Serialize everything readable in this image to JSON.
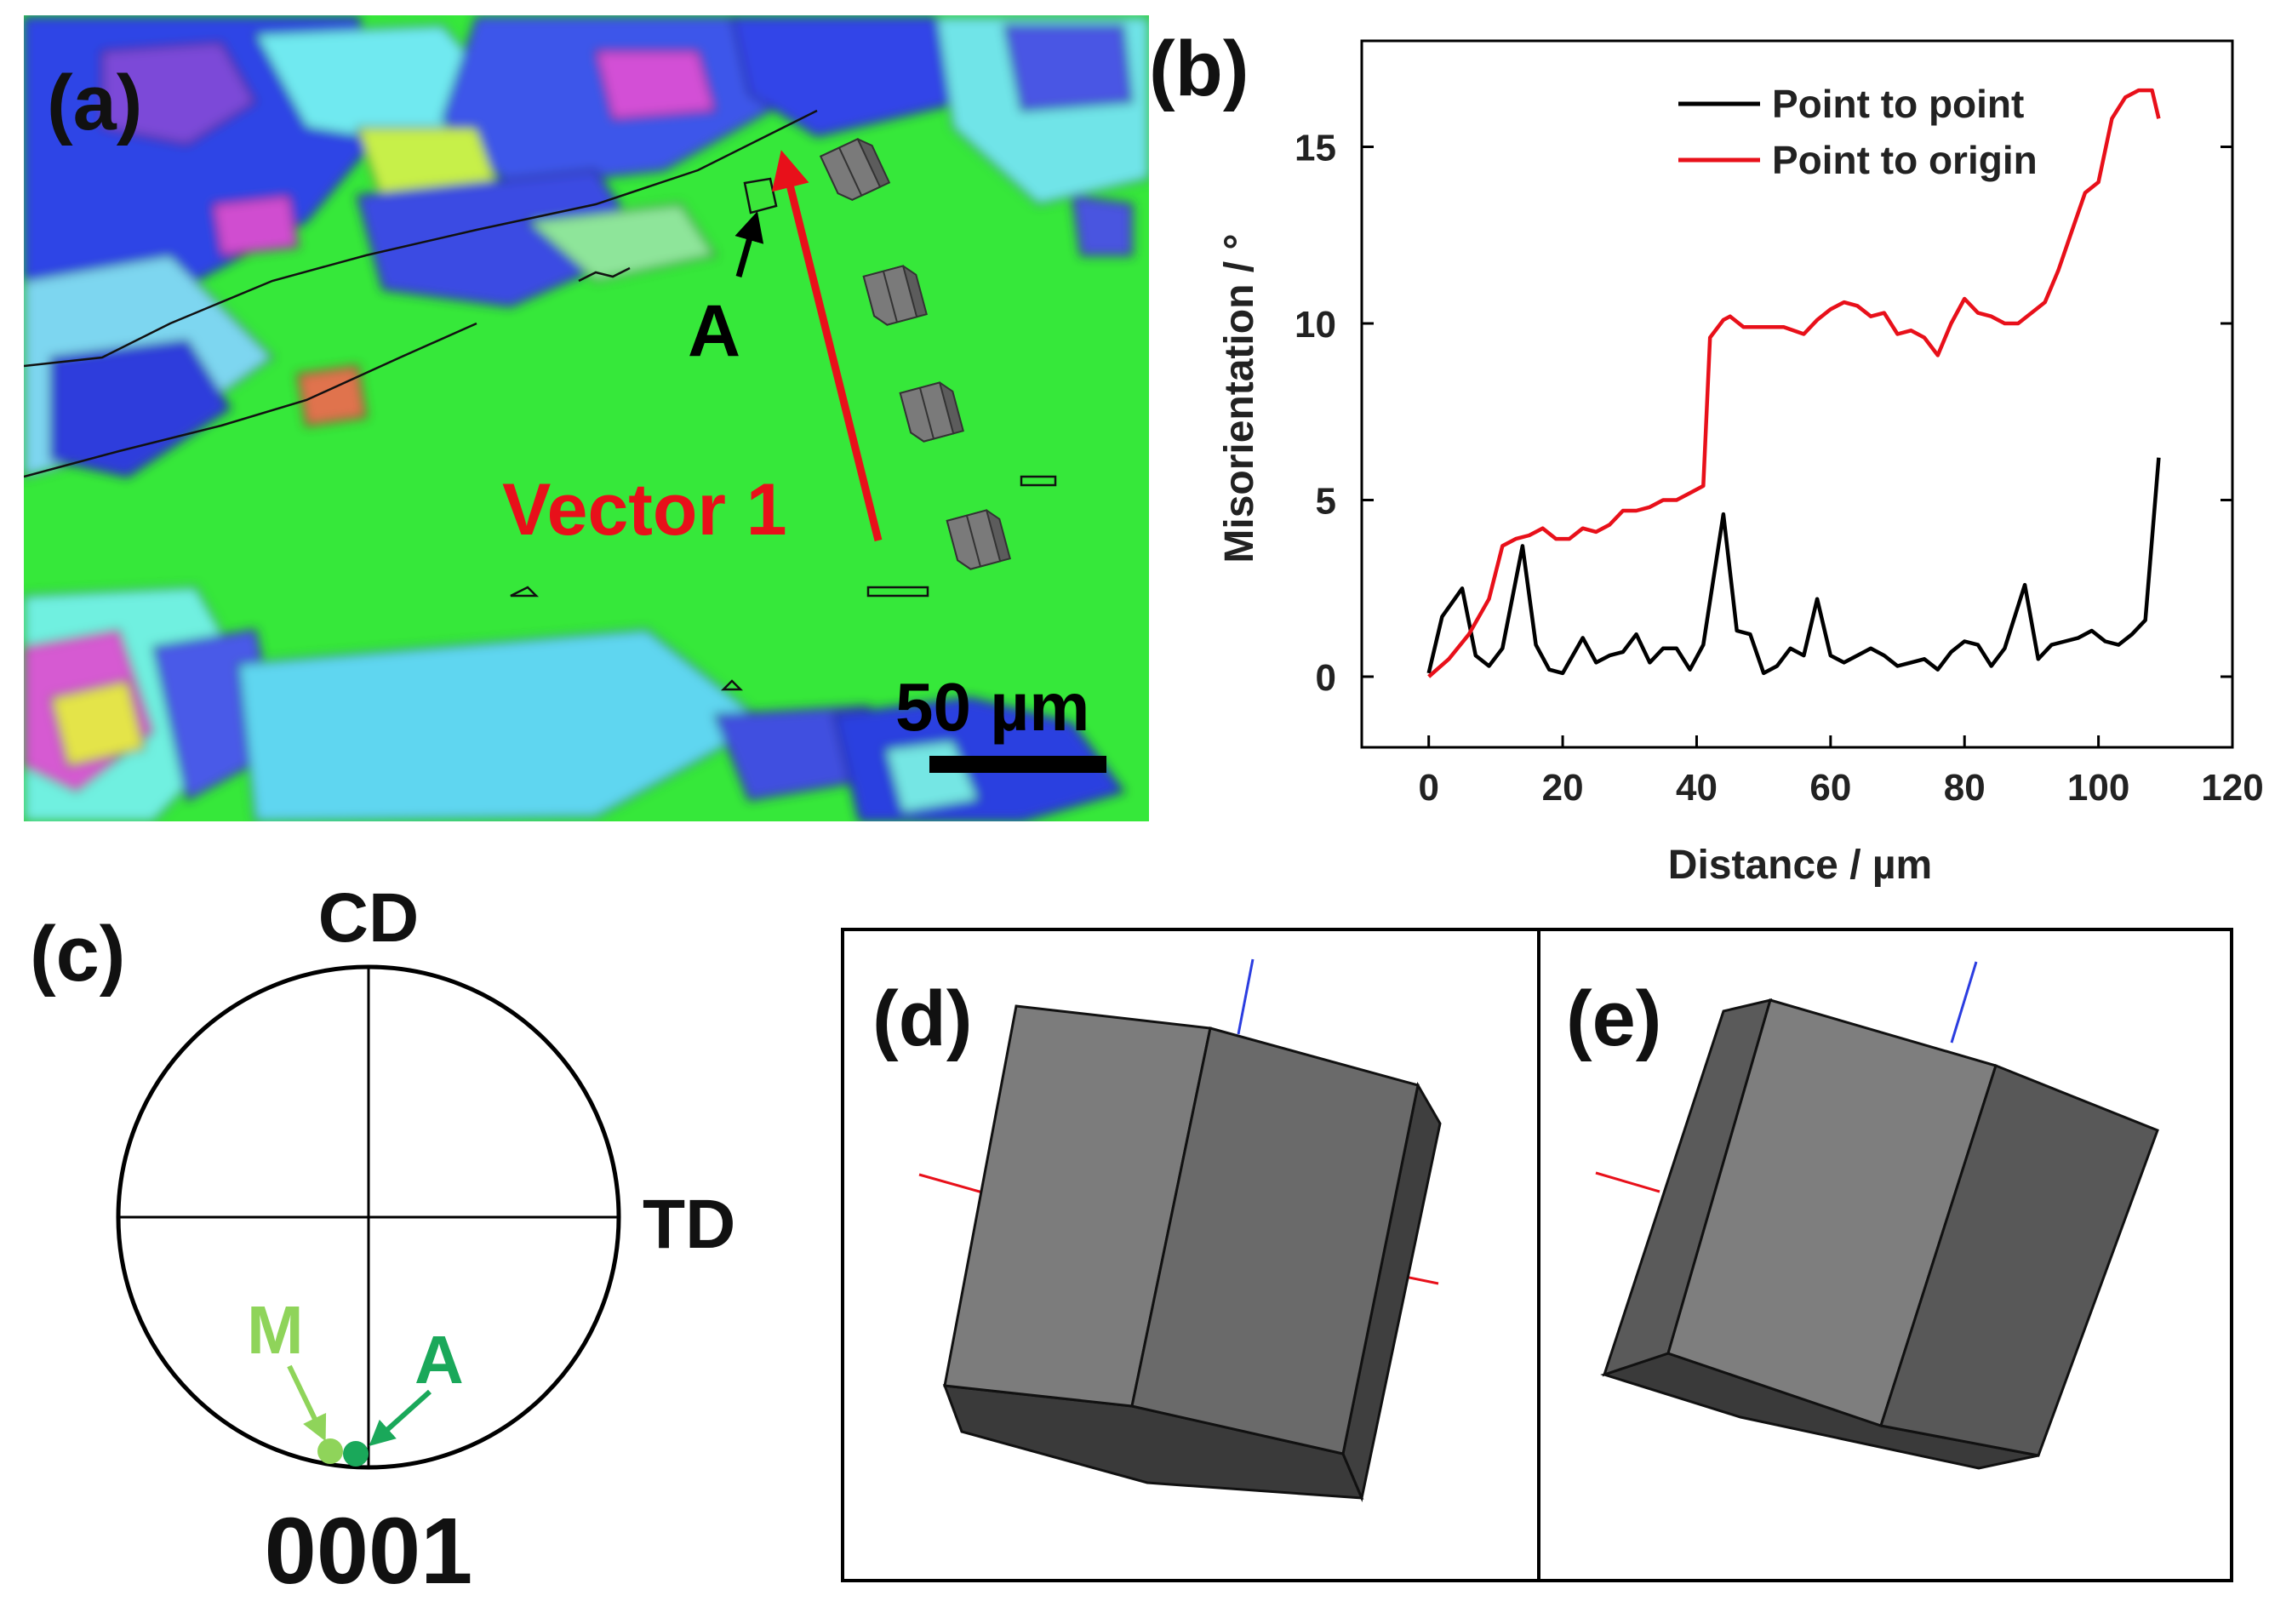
{
  "figure": {
    "panel_labels": {
      "a": "(a)",
      "b": "(b)",
      "c": "(c)",
      "d": "(d)",
      "e": "(e)"
    }
  },
  "ebsd_map": {
    "point_label": "A",
    "vector_label": "Vector 1",
    "scale_bar_label": "50 µm",
    "colors": {
      "green": "#33ee33",
      "blue": "#2b3de0",
      "purple": "#7a46d8",
      "cyan": "#55e0e6",
      "vector": "#e8101a",
      "hex_prism": "#6e6e6e"
    }
  },
  "chart_data": {
    "type": "line",
    "xlabel": "Distance / µm",
    "ylabel": "Misorientation / °",
    "xlim": [
      -10,
      120
    ],
    "ylim": [
      -2,
      18
    ],
    "x_ticks": [
      0,
      20,
      40,
      60,
      80,
      100,
      120
    ],
    "y_ticks": [
      0,
      5,
      10,
      15
    ],
    "x_tick_labels": [
      "0",
      "20",
      "40",
      "60",
      "80",
      "100",
      "120"
    ],
    "y_tick_labels": [
      "0",
      "5",
      "10",
      "15"
    ],
    "legend_position": "top-right",
    "series": [
      {
        "name": "Point to point",
        "color": "#000000",
        "x": [
          0,
          2,
          5,
          7,
          9,
          11,
          14,
          16,
          18,
          20,
          23,
          25,
          27,
          29,
          31,
          33,
          35,
          37,
          39,
          41,
          44,
          46,
          48,
          50,
          52,
          54,
          56,
          58,
          60,
          62,
          64,
          66,
          68,
          70,
          72,
          74,
          76,
          78,
          80,
          82,
          84,
          86,
          89,
          91,
          93,
          95,
          97,
          99,
          101,
          103,
          105,
          107,
          109
        ],
        "values": [
          0.1,
          1.7,
          2.5,
          0.6,
          0.3,
          0.8,
          3.7,
          0.9,
          0.2,
          0.1,
          1.1,
          0.4,
          0.6,
          0.7,
          1.2,
          0.4,
          0.8,
          0.8,
          0.2,
          0.9,
          4.6,
          1.3,
          1.2,
          0.1,
          0.3,
          0.8,
          0.6,
          2.2,
          0.6,
          0.4,
          0.6,
          0.8,
          0.6,
          0.3,
          0.4,
          0.5,
          0.2,
          0.7,
          1.0,
          0.9,
          0.3,
          0.8,
          2.6,
          0.5,
          0.9,
          1.0,
          1.1,
          1.3,
          1.0,
          0.9,
          1.2,
          1.6,
          6.2
        ]
      },
      {
        "name": "Point to origin",
        "color": "#e8101a",
        "x": [
          0,
          3,
          6,
          9,
          11,
          13,
          15,
          17,
          19,
          21,
          23,
          25,
          27,
          29,
          31,
          33,
          35,
          37,
          39,
          41,
          42,
          44,
          45,
          47,
          50,
          53,
          56,
          58,
          60,
          62,
          64,
          66,
          68,
          70,
          72,
          74,
          76,
          78,
          80,
          82,
          84,
          86,
          88,
          90,
          92,
          94,
          96,
          98,
          100,
          102,
          104,
          106,
          108,
          109
        ],
        "values": [
          0.0,
          0.5,
          1.2,
          2.2,
          3.7,
          3.9,
          4.0,
          4.2,
          3.9,
          3.9,
          4.2,
          4.1,
          4.3,
          4.7,
          4.7,
          4.8,
          5.0,
          5.0,
          5.2,
          5.4,
          9.6,
          10.1,
          10.2,
          9.9,
          9.9,
          9.9,
          9.7,
          10.1,
          10.4,
          10.6,
          10.5,
          10.2,
          10.3,
          9.7,
          9.8,
          9.6,
          9.1,
          10.0,
          10.7,
          10.3,
          10.2,
          10.0,
          10.0,
          10.3,
          10.6,
          11.5,
          12.6,
          13.7,
          14.0,
          15.8,
          16.4,
          16.6,
          16.6,
          15.8
        ]
      }
    ]
  },
  "pole_figure": {
    "top_label": "CD",
    "right_label": "TD",
    "bottom_label": "0001",
    "points": [
      {
        "label": "M",
        "color": "#8fd45a"
      },
      {
        "label": "A",
        "color": "#1aa85a"
      }
    ]
  },
  "crystal_views": {
    "face_colors": {
      "front": "#7c7c7c",
      "side": "#5a5a5a",
      "bottom": "#3a3a3a"
    }
  }
}
